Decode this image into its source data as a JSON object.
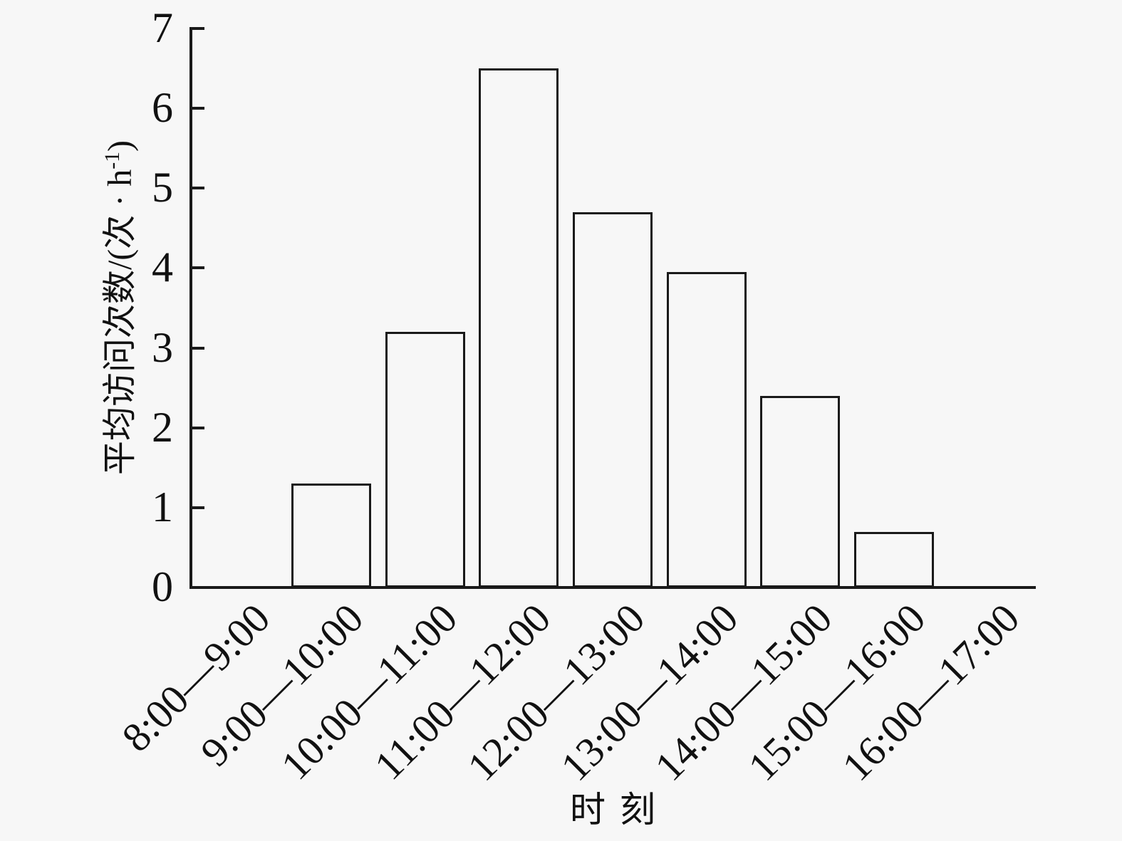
{
  "chart_data": {
    "type": "bar",
    "title": "",
    "xlabel": "时刻",
    "ylabel": "平均访问次数/(次 · h⁻¹)",
    "ylabel_parts": {
      "prefix": "平均访问次数/(次 · h",
      "superscript": "-1",
      "suffix": ")"
    },
    "categories": [
      "8:00—9:00",
      "9:00—10:00",
      "10:00—11:00",
      "11:00—12:00",
      "12:00—13:00",
      "13:00—14:00",
      "14:00—15:00",
      "15:00—16:00",
      "16:00—17:00"
    ],
    "values": [
      0,
      1.3,
      3.2,
      6.5,
      4.7,
      3.95,
      2.4,
      0.7,
      0
    ],
    "ylim": [
      0,
      7
    ],
    "yticks": [
      0,
      1,
      2,
      3,
      4,
      5,
      6,
      7
    ],
    "grid": false,
    "legend_position": "none",
    "bar_fill": "none",
    "colors": {
      "background": "#f7f7f7",
      "axis": "#1a1a1a",
      "bar_edge": "#1a1a1a",
      "text": "#111111"
    }
  }
}
